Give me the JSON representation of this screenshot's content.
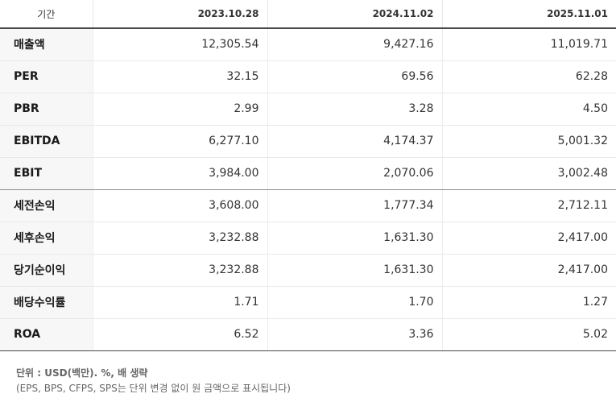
{
  "table": {
    "header": {
      "label": "기간",
      "periods": [
        "2023.10.28",
        "2024.11.02",
        "2025.11.01"
      ]
    },
    "rows": [
      {
        "label": "매출액",
        "values": [
          "12,305.54",
          "9,427.16",
          "11,019.71"
        ]
      },
      {
        "label": "PER",
        "values": [
          "32.15",
          "69.56",
          "62.28"
        ]
      },
      {
        "label": "PBR",
        "values": [
          "2.99",
          "3.28",
          "4.50"
        ]
      },
      {
        "label": "EBITDA",
        "values": [
          "6,277.10",
          "4,174.37",
          "5,001.32"
        ]
      },
      {
        "label": "EBIT",
        "values": [
          "3,984.00",
          "2,070.06",
          "3,002.48"
        ]
      },
      {
        "label": "세전손익",
        "values": [
          "3,608.00",
          "1,777.34",
          "2,712.11"
        ]
      },
      {
        "label": "세후손익",
        "values": [
          "3,232.88",
          "1,631.30",
          "2,417.00"
        ]
      },
      {
        "label": "당기순이익",
        "values": [
          "3,232.88",
          "1,631.30",
          "2,417.00"
        ]
      },
      {
        "label": "배당수익률",
        "values": [
          "1.71",
          "1.70",
          "1.27"
        ]
      },
      {
        "label": "ROA",
        "values": [
          "6.52",
          "3.36",
          "5.02"
        ]
      }
    ]
  },
  "notes": {
    "unit": "단위 : USD(백만). %, 배 생략",
    "detail": "(EPS, BPS, CFPS, SPS는 단위 변경 없이 원 금액으로 표시됩니다)"
  }
}
